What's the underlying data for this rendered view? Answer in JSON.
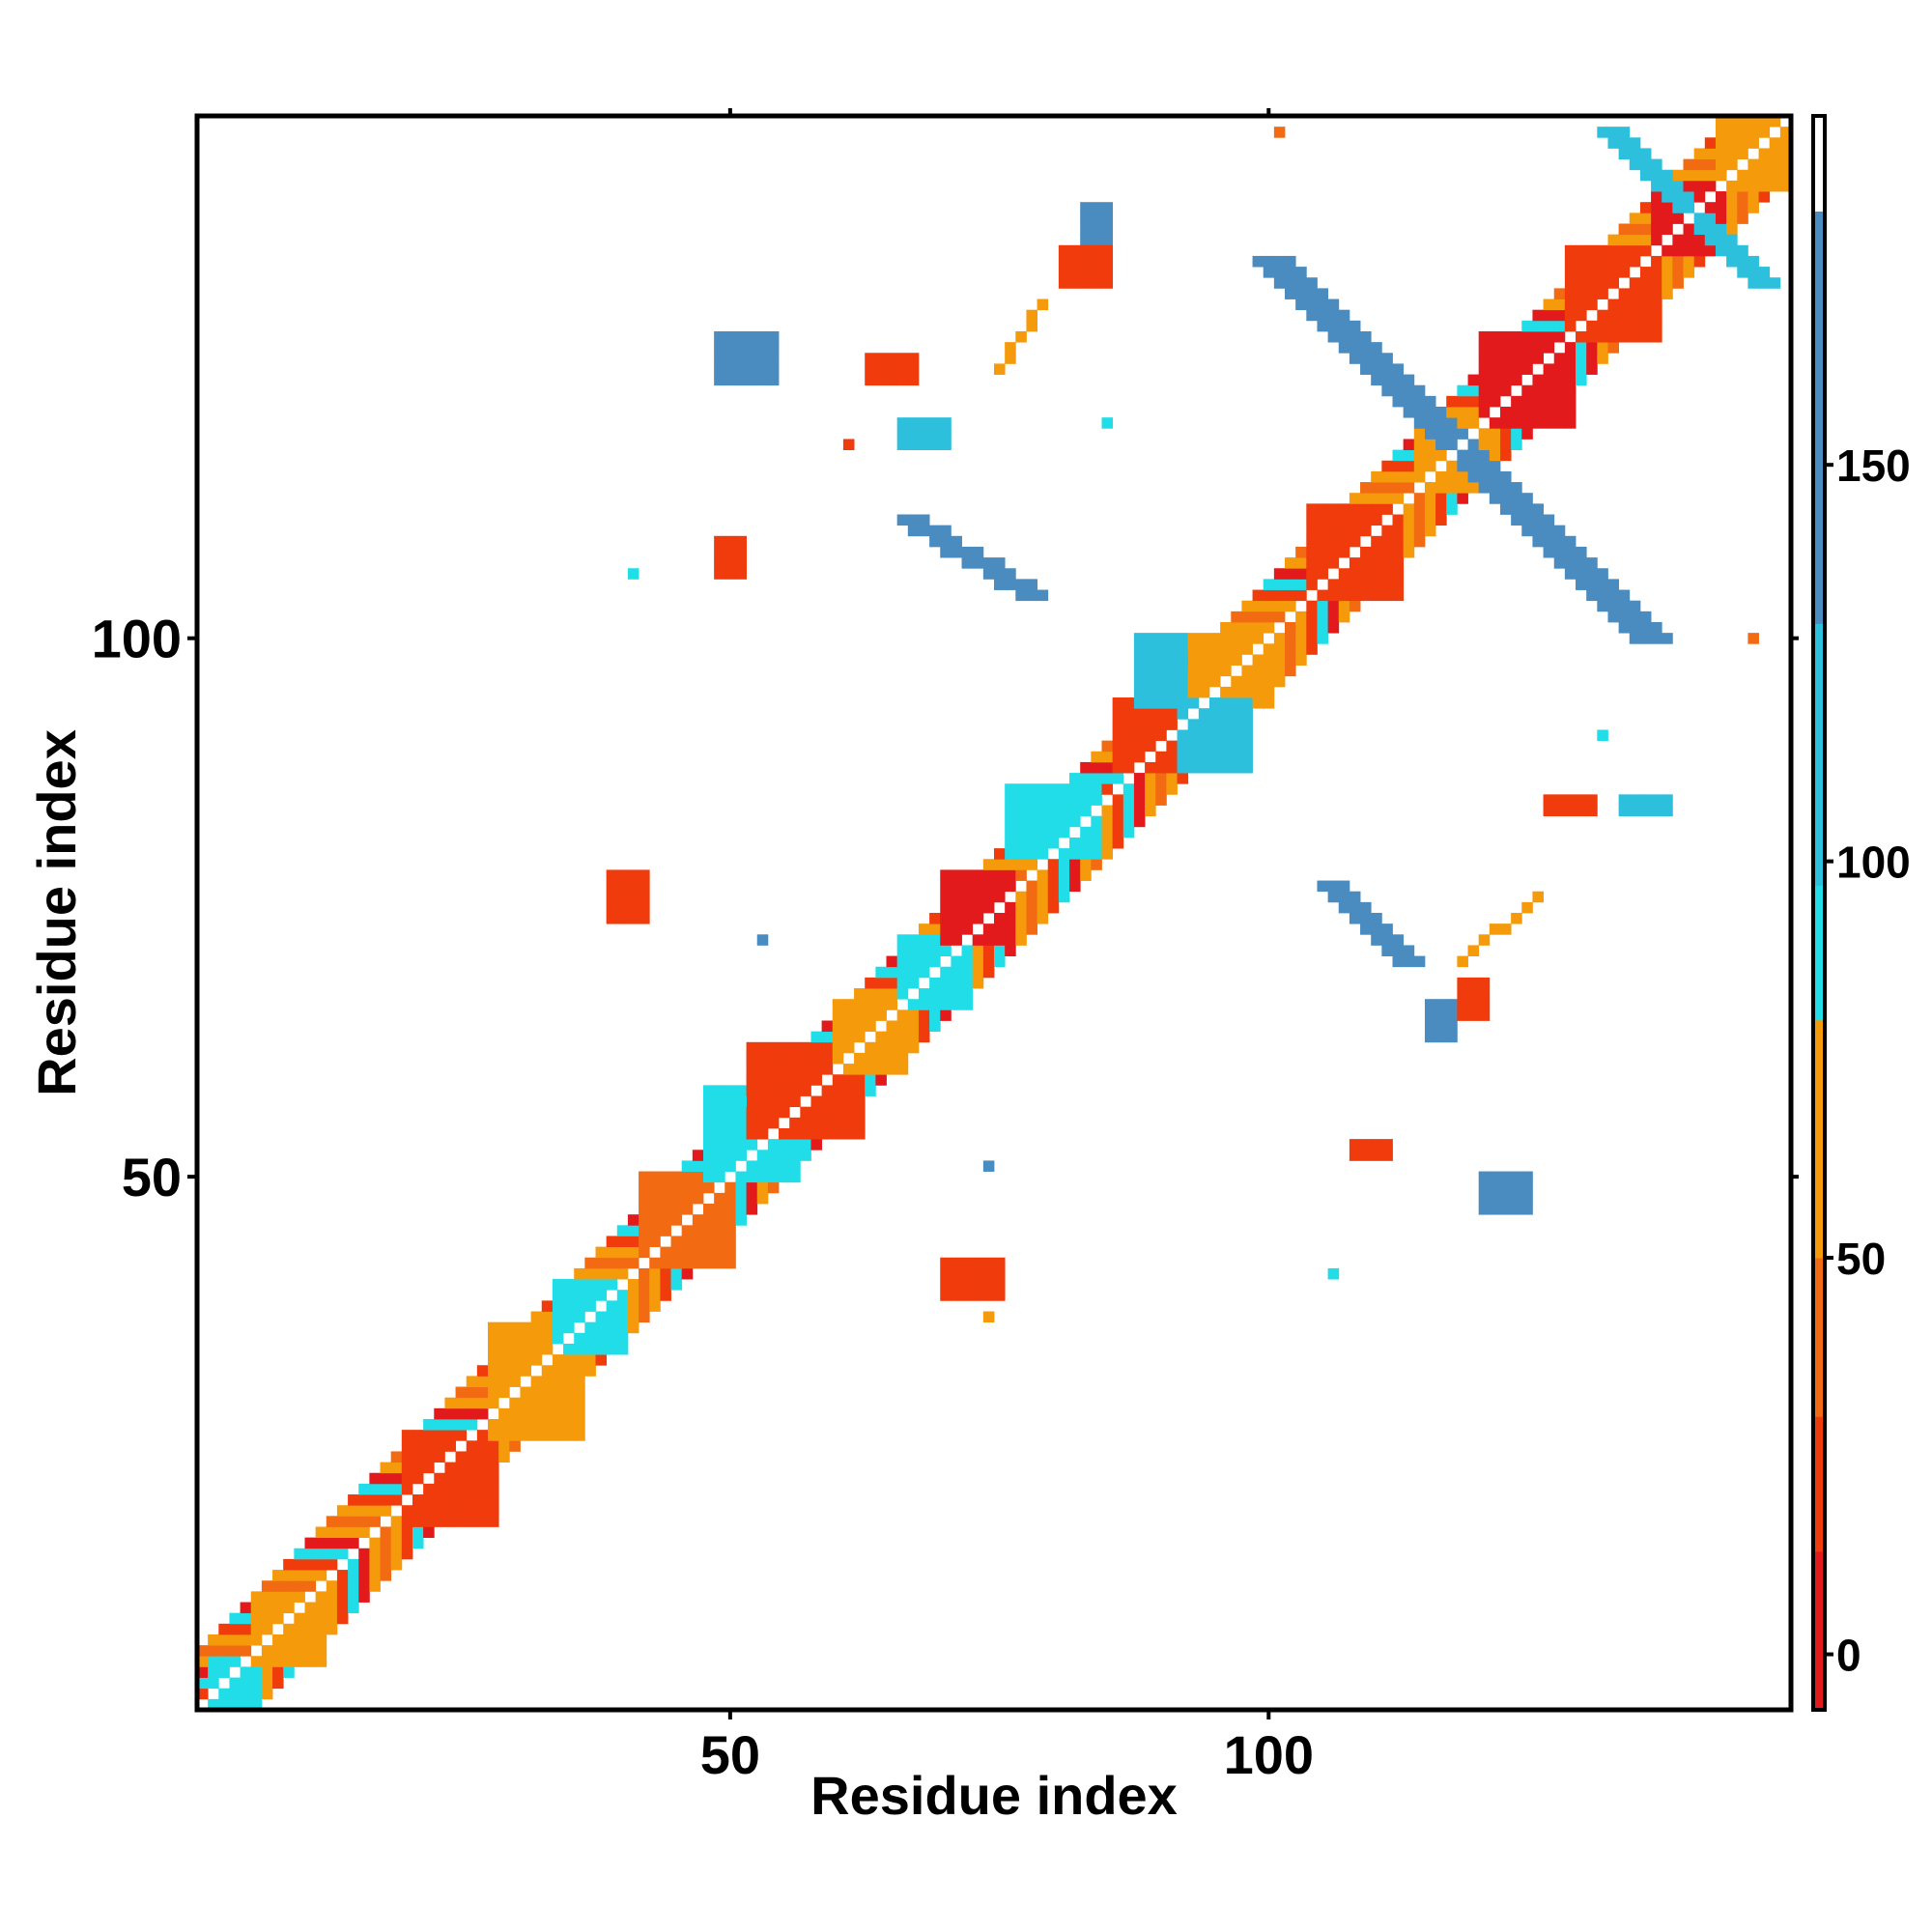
{
  "chart_data": {
    "type": "heatmap",
    "title": "",
    "xlabel": "Residue index",
    "ylabel": "Residue index",
    "xlim": [
      1,
      148
    ],
    "ylim": [
      1,
      148
    ],
    "x_ticks": [
      "50",
      "100"
    ],
    "y_ticks": [
      "50",
      "100"
    ],
    "grid": false,
    "legend_placement": "right",
    "colorbar": {
      "ticks": [
        "0",
        "50",
        "100",
        "150"
      ],
      "range": [
        -7,
        194
      ],
      "bins": [
        {
          "min": -7,
          "max": 13,
          "color": "#e31a1c"
        },
        {
          "min": 13,
          "max": 30,
          "color": "#f03b0c"
        },
        {
          "min": 30,
          "max": 50,
          "color": "#f26a12"
        },
        {
          "min": 50,
          "max": 80,
          "color": "#f59a0b"
        },
        {
          "min": 80,
          "max": 97,
          "color": "#20dde8"
        },
        {
          "min": 97,
          "max": 130,
          "color": "#2cc0dc"
        },
        {
          "min": 130,
          "max": 182,
          "color": "#4a8cc0"
        },
        {
          "min": 182,
          "max": 194,
          "color": "#ffffff"
        }
      ]
    },
    "diagonal_band": {
      "from": 1,
      "to": 148,
      "half_width": 5,
      "value_pattern": [
        45,
        60,
        25,
        85,
        10,
        55
      ]
    },
    "blocks": [
      {
        "x": [
          2,
          6
        ],
        "y": [
          1,
          5
        ],
        "value": 88
      },
      {
        "x": [
          6,
          12
        ],
        "y": [
          5,
          11
        ],
        "value": 55
      },
      {
        "x": [
          20,
          28
        ],
        "y": [
          18,
          26
        ],
        "value": 20
      },
      {
        "x": [
          28,
          36
        ],
        "y": [
          26,
          36
        ],
        "value": 60
      },
      {
        "x": [
          34,
          40
        ],
        "y": [
          34,
          40
        ],
        "value": 88
      },
      {
        "x": [
          42,
          50
        ],
        "y": [
          42,
          50
        ],
        "value": 45
      },
      {
        "x": [
          48,
          56
        ],
        "y": [
          50,
          58
        ],
        "value": 88
      },
      {
        "x": [
          52,
          62
        ],
        "y": [
          54,
          62
        ],
        "value": 20
      },
      {
        "x": [
          60,
          66
        ],
        "y": [
          60,
          66
        ],
        "value": 60
      },
      {
        "x": [
          66,
          72
        ],
        "y": [
          66,
          72
        ],
        "value": 88
      },
      {
        "x": [
          70,
          76
        ],
        "y": [
          72,
          78
        ],
        "value": 10
      },
      {
        "x": [
          76,
          84
        ],
        "y": [
          80,
          86
        ],
        "value": 88
      },
      {
        "x": [
          86,
          92
        ],
        "y": [
          88,
          94
        ],
        "value": 20
      },
      {
        "x": [
          92,
          100
        ],
        "y": [
          94,
          100
        ],
        "value": 60
      },
      {
        "x": [
          104,
          112
        ],
        "y": [
          104,
          112
        ],
        "value": 20
      },
      {
        "x": [
          114,
          120
        ],
        "y": [
          114,
          120
        ],
        "value": 60
      },
      {
        "x": [
          120,
          128
        ],
        "y": [
          120,
          128
        ],
        "value": 10
      },
      {
        "x": [
          128,
          136
        ],
        "y": [
          128,
          136
        ],
        "value": 25
      },
      {
        "x": [
          136,
          142
        ],
        "y": [
          136,
          142
        ],
        "value": 10
      },
      {
        "x": [
          142,
          148
        ],
        "y": [
          142,
          148
        ],
        "value": 55
      },
      {
        "x": [
          88,
          92
        ],
        "y": [
          94,
          100
        ],
        "value": 100
      },
      {
        "x": [
          92,
          98
        ],
        "y": [
          88,
          94
        ],
        "value": 100
      },
      {
        "x": [
          39,
          42
        ],
        "y": [
          74,
          78
        ],
        "value": 15
      },
      {
        "x": [
          70,
          75
        ],
        "y": [
          39,
          42
        ],
        "value": 15
      },
      {
        "x": [
          126,
          130
        ],
        "y": [
          84,
          85
        ],
        "value": 20
      },
      {
        "x": [
          133,
          137
        ],
        "y": [
          84,
          85
        ],
        "value": 100
      },
      {
        "x": [
          120,
          124
        ],
        "y": [
          47,
          50
        ],
        "value": 140
      },
      {
        "x": [
          115,
          117
        ],
        "y": [
          63,
          66
        ],
        "value": 140
      },
      {
        "x": [
          49,
          54
        ],
        "y": [
          124,
          128
        ],
        "value": 140
      },
      {
        "x": [
          83,
          85
        ],
        "y": [
          137,
          140
        ],
        "value": 140
      },
      {
        "x": [
          63,
          67
        ],
        "y": [
          124,
          126
        ],
        "value": 20
      },
      {
        "x": [
          81,
          85
        ],
        "y": [
          133,
          136
        ],
        "value": 20
      },
      {
        "x": [
          66,
          70
        ],
        "y": [
          118,
          120
        ],
        "value": 100
      },
      {
        "x": [
          118,
          120
        ],
        "y": [
          65,
          68
        ],
        "value": 15
      },
      {
        "x": [
          108,
          111
        ],
        "y": [
          52,
          53
        ],
        "value": 20
      },
      {
        "x": [
          49,
          51
        ],
        "y": [
          106,
          109
        ],
        "value": 25
      }
    ],
    "anti_diagonals": [
      {
        "x0": 99,
        "y0": 135,
        "x1": 134,
        "y1": 100,
        "width": 4,
        "value": 140
      },
      {
        "x0": 66,
        "y0": 111,
        "x1": 77,
        "y1": 104,
        "width": 3,
        "value": 140
      },
      {
        "x0": 105,
        "y0": 77,
        "x1": 112,
        "y1": 70,
        "width": 3,
        "value": 140
      },
      {
        "x0": 131,
        "y0": 147,
        "x1": 145,
        "y1": 133,
        "width": 3,
        "value": 105
      },
      {
        "x0": 75,
        "y0": 125,
        "x1": 79,
        "y1": 131,
        "width": 1,
        "value": 55
      },
      {
        "x0": 118,
        "y0": 70,
        "x1": 125,
        "y1": 76,
        "width": 1,
        "value": 55
      }
    ],
    "points": [
      {
        "x": 101,
        "y": 147,
        "value": 45
      },
      {
        "x": 41,
        "y": 106,
        "value": 90
      },
      {
        "x": 53,
        "y": 72,
        "value": 130
      },
      {
        "x": 74,
        "y": 51,
        "value": 130
      },
      {
        "x": 74,
        "y": 37,
        "value": 60
      },
      {
        "x": 106,
        "y": 41,
        "value": 90
      },
      {
        "x": 145,
        "y": 100,
        "value": 45
      },
      {
        "x": 131,
        "y": 91,
        "value": 85
      },
      {
        "x": 85,
        "y": 120,
        "value": 85
      },
      {
        "x": 61,
        "y": 118,
        "value": 20
      }
    ]
  }
}
